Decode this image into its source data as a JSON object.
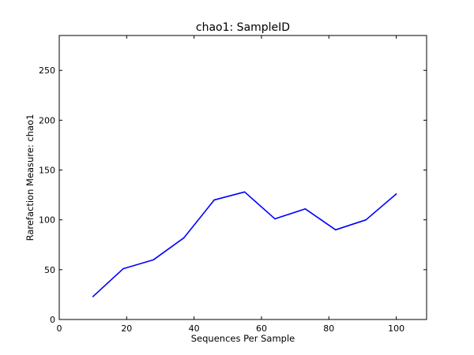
{
  "chart_data": {
    "type": "line",
    "title": "chao1: SampleID",
    "xlabel": "Sequences Per Sample",
    "ylabel": "Rarefaction Measure: chao1",
    "xlim": [
      0,
      109
    ],
    "ylim": [
      0,
      285
    ],
    "xticks": [
      0,
      20,
      40,
      60,
      80,
      100
    ],
    "yticks": [
      0,
      50,
      100,
      150,
      200,
      250
    ],
    "grid": false,
    "series": [
      {
        "color": "#0000ff",
        "x": [
          10,
          19,
          28,
          37,
          46,
          55,
          64,
          73,
          82,
          91,
          100
        ],
        "y": [
          23,
          51,
          60,
          82,
          120,
          128,
          101,
          111,
          90,
          100,
          126
        ]
      }
    ]
  }
}
